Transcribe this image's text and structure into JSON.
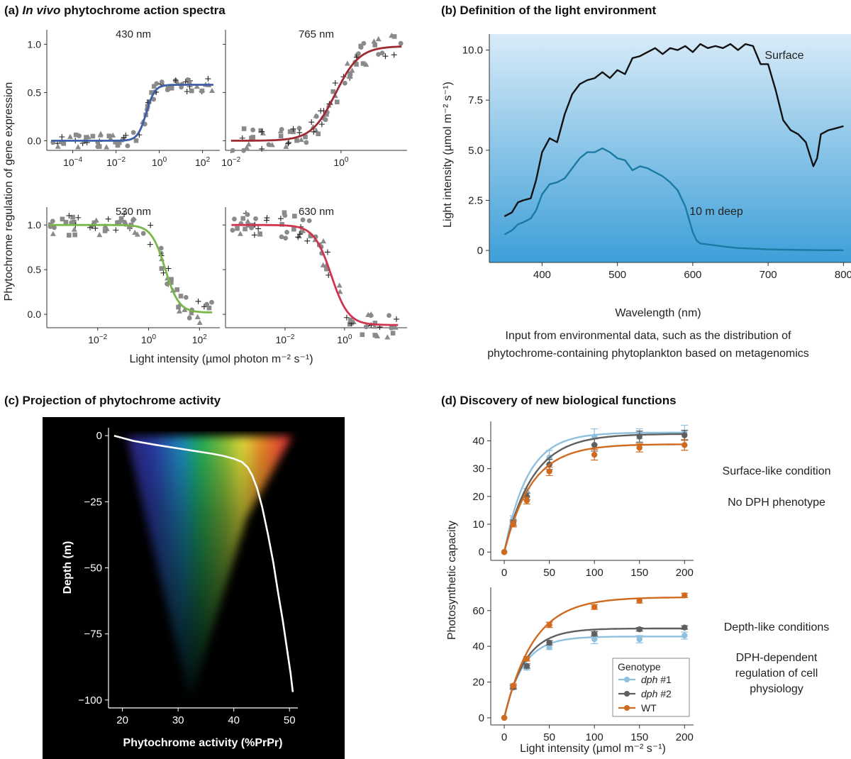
{
  "panels": {
    "a": {
      "title_prefix": "(a) ",
      "title_italic": "In vivo",
      "title_suffix": " phytochrome action spectra",
      "ylabel": "Phytochrome regulation of gene expression",
      "xlabel": "Light intensity (µmol photon m⁻² s⁻¹)"
    },
    "b": {
      "title": "(b) Definition of the light environment",
      "caption_line1": "Input from environmental data, such as the distribution of",
      "caption_line2": "phytochrome-containing phytoplankton based on metagenomics"
    },
    "c": {
      "title": "(c) Projection of phytochrome activity"
    },
    "d": {
      "title": "(d) Discovery of new biological functions",
      "top_note1": "Surface-like condition",
      "top_note2": "No DPH phenotype",
      "bottom_note1": "Depth-like conditions",
      "bottom_note2a": "DPH-dependent",
      "bottom_note2b": "regulation of cell",
      "bottom_note2c": "physiology"
    }
  },
  "chart_data": [
    {
      "id": "a1",
      "type": "scatter",
      "title": "430 nm",
      "xscale": "log10",
      "xlim_exp": [
        -5.2,
        2.8
      ],
      "ylim": [
        -0.1,
        1.15
      ],
      "xticks_exp": [
        -4,
        -2,
        0,
        2
      ],
      "yticks": [
        0.0,
        0.5,
        1.0
      ],
      "fit": {
        "color": "#3f5ea8",
        "log_x_range": [
          -5,
          2.5
        ],
        "bottom": 0.0,
        "top": 0.58,
        "log_ec50": -0.6,
        "hill": 2.2
      }
    },
    {
      "id": "a2",
      "type": "scatter",
      "title": "765 nm",
      "xscale": "log10",
      "xlim_exp": [
        -2.1,
        1.2
      ],
      "ylim": [
        -0.1,
        1.15
      ],
      "xticks_exp": [
        -2,
        0
      ],
      "yticks": [
        0.0,
        0.5,
        1.0
      ],
      "fit": {
        "color": "#9e2a33",
        "log_x_range": [
          -2,
          1.1
        ],
        "bottom": 0.0,
        "top": 0.98,
        "log_ec50": -0.1,
        "hill": 2.0
      }
    },
    {
      "id": "a3",
      "type": "scatter",
      "title": "530 nm",
      "xscale": "log10",
      "xlim_exp": [
        -4,
        2.8
      ],
      "ylim": [
        -0.15,
        1.2
      ],
      "xticks_exp": [
        -2,
        0,
        2
      ],
      "yticks": [
        0.0,
        0.5,
        1.0
      ],
      "fit": {
        "color": "#7ab648",
        "log_x_range": [
          -3.9,
          2.5
        ],
        "bottom": 0.02,
        "top": 1.0,
        "log_ec50": 0.65,
        "hill": -1.6
      }
    },
    {
      "id": "a4",
      "type": "scatter",
      "title": "630 nm",
      "xscale": "log10",
      "xlim_exp": [
        -4,
        2.1
      ],
      "ylim": [
        -0.15,
        1.2
      ],
      "xticks_exp": [
        -2,
        0
      ],
      "yticks": [
        0.0,
        0.5,
        1.0
      ],
      "fit": {
        "color": "#d1344d",
        "log_x_range": [
          -3.8,
          1.8
        ],
        "bottom": -0.12,
        "top": 1.0,
        "log_ec50": -0.45,
        "hill": -1.5
      }
    },
    {
      "id": "b",
      "type": "line",
      "title": "Definition of the light environment",
      "xlabel": "Wavelength (nm)",
      "ylabel": "Light intensity (µmol m⁻² s⁻¹)",
      "xlim": [
        330,
        810
      ],
      "ylim": [
        -0.6,
        10.8
      ],
      "xticks": [
        400,
        500,
        600,
        700,
        800
      ],
      "yticks": [
        0,
        2.5,
        5.0,
        7.5,
        10.0
      ],
      "ytick_labels": [
        "0",
        "2.5",
        "5.0",
        "7.5",
        "10.0"
      ],
      "series": [
        {
          "name": "Surface",
          "color": "#111111",
          "x": [
            350,
            360,
            368,
            375,
            385,
            392,
            400,
            410,
            420,
            430,
            440,
            450,
            460,
            470,
            480,
            490,
            500,
            510,
            520,
            530,
            540,
            550,
            560,
            570,
            580,
            590,
            600,
            610,
            620,
            630,
            640,
            650,
            660,
            670,
            680,
            690,
            700,
            710,
            720,
            730,
            740,
            750,
            755,
            760,
            765,
            770,
            780,
            790,
            800
          ],
          "y": [
            1.7,
            1.9,
            2.4,
            2.5,
            2.6,
            3.5,
            4.9,
            5.6,
            5.4,
            6.8,
            7.8,
            8.3,
            8.5,
            8.6,
            8.9,
            8.6,
            9.0,
            8.8,
            9.6,
            9.7,
            9.9,
            10.1,
            9.8,
            10.1,
            10.0,
            10.2,
            9.9,
            10.3,
            10.1,
            10.2,
            10.1,
            10.3,
            10.0,
            10.3,
            10.2,
            9.3,
            9.3,
            8.0,
            6.5,
            6.0,
            5.8,
            5.4,
            4.8,
            4.2,
            4.6,
            5.8,
            6.0,
            6.1,
            6.2
          ]
        },
        {
          "name": "10 m deep",
          "color": "#1b7aa3",
          "x": [
            350,
            360,
            368,
            375,
            385,
            392,
            400,
            410,
            420,
            430,
            440,
            450,
            460,
            470,
            480,
            490,
            500,
            510,
            520,
            530,
            540,
            550,
            560,
            570,
            580,
            590,
            600,
            605,
            610,
            620,
            640,
            660,
            700,
            750,
            800
          ],
          "y": [
            0.8,
            1.0,
            1.3,
            1.4,
            1.6,
            2.0,
            2.8,
            3.3,
            3.4,
            3.6,
            4.1,
            4.6,
            4.9,
            4.9,
            5.1,
            4.9,
            4.6,
            4.5,
            4.0,
            4.2,
            4.1,
            3.9,
            3.7,
            3.4,
            3.0,
            2.2,
            0.9,
            0.5,
            0.35,
            0.3,
            0.2,
            0.12,
            0.05,
            0.02,
            0.01
          ]
        }
      ],
      "annotations": [
        "Surface",
        "10 m deep"
      ]
    },
    {
      "id": "c",
      "type": "line",
      "title": "Projection of phytochrome activity",
      "xlabel": "Phytochrome activity (%PrPr)",
      "ylabel": "Depth (m)",
      "xlim": [
        17.5,
        51.5
      ],
      "ylim": [
        -103,
        3
      ],
      "xticks": [
        20,
        30,
        40,
        50
      ],
      "yticks": [
        0,
        -25,
        -50,
        -75,
        -100
      ],
      "ytick_labels": [
        "0",
        "−25",
        "−50",
        "−75",
        "−100"
      ],
      "series": [
        {
          "name": "phytochrome activity",
          "color": "#ffffff",
          "x": [
            18.5,
            22,
            26,
            30,
            33,
            36,
            38,
            40,
            41.5,
            42.5,
            43.3,
            44.2,
            45.1,
            46.1,
            47.1,
            48,
            48.8,
            49.5,
            50.2,
            50.6
          ],
          "y": [
            0,
            -2,
            -3.5,
            -4.8,
            -5.8,
            -6.8,
            -7.6,
            -8.7,
            -10,
            -12,
            -15,
            -20,
            -27,
            -37,
            -48,
            -60,
            -70,
            -80,
            -90,
            -97
          ]
        }
      ]
    },
    {
      "id": "d1",
      "type": "line",
      "title": "Surface-like condition",
      "ylabel": "Photosynthetic capacity",
      "xlim": [
        -15,
        210
      ],
      "ylim": [
        -3,
        47
      ],
      "xticks": [
        0,
        50,
        100,
        150,
        200
      ],
      "yticks": [
        0,
        10,
        20,
        30,
        40
      ],
      "x": [
        0,
        10,
        25,
        50,
        100,
        150,
        200
      ],
      "series": [
        {
          "name": "dph #1",
          "color": "#8fc1df",
          "values": [
            0,
            12,
            21.5,
            34,
            41.5,
            42.5,
            43
          ],
          "err": [
            0,
            1,
            1.3,
            2.5,
            2.8,
            1.8,
            2.6
          ],
          "fit": {
            "vmax": 43,
            "k": 0.039
          }
        },
        {
          "name": "dph #2",
          "color": "#5f5f5f",
          "values": [
            0,
            10.5,
            20,
            31.5,
            38.5,
            41.5,
            42
          ],
          "err": [
            0,
            1,
            1.2,
            1.8,
            2.2,
            2,
            1.8
          ],
          "fit": {
            "vmax": 42.5,
            "k": 0.032
          }
        },
        {
          "name": "WT",
          "color": "#d06a1f",
          "values": [
            0,
            10,
            18.5,
            29,
            35,
            37.5,
            38.5
          ],
          "err": [
            0,
            1,
            1.2,
            1.5,
            1.9,
            1.5,
            1.9
          ],
          "fit": {
            "vmax": 38.8,
            "k": 0.033
          }
        }
      ]
    },
    {
      "id": "d2",
      "type": "line",
      "title": "Depth-like conditions",
      "xlabel": "Light intensity (µmol m⁻² s⁻¹)",
      "ylabel": "Photosynthetic capacity",
      "xlim": [
        -15,
        210
      ],
      "ylim": [
        -4,
        73
      ],
      "xticks": [
        0,
        50,
        100,
        150,
        200
      ],
      "yticks": [
        0,
        20,
        40,
        60
      ],
      "x": [
        0,
        10,
        25,
        50,
        100,
        150,
        200
      ],
      "series": [
        {
          "name": "dph #1",
          "color": "#8fc1df",
          "values": [
            0,
            17.5,
            28,
            39.5,
            44,
            44,
            46
          ],
          "err": [
            0,
            1,
            1.2,
            1.3,
            2.5,
            2,
            2
          ],
          "fit": {
            "vmax": 45.5,
            "k": 0.048
          }
        },
        {
          "name": "dph #2",
          "color": "#5f5f5f",
          "values": [
            0,
            17,
            29,
            42,
            47,
            49.5,
            50.5
          ],
          "err": [
            0,
            1,
            1.2,
            1.2,
            1.2,
            1,
            1
          ],
          "fit": {
            "vmax": 50,
            "k": 0.044
          }
        },
        {
          "name": "WT",
          "color": "#d06a1f",
          "values": [
            0,
            18,
            33,
            52,
            62,
            65.5,
            68.5
          ],
          "err": [
            0,
            1,
            1.2,
            1.5,
            1.3,
            1.3,
            1.2
          ],
          "fit": {
            "vmax": 67.5,
            "k": 0.031
          }
        }
      ],
      "legend": {
        "title": "Genotype",
        "entries": [
          "dph #1",
          "dph #2",
          "WT"
        ],
        "position": "bottom-right"
      }
    }
  ]
}
